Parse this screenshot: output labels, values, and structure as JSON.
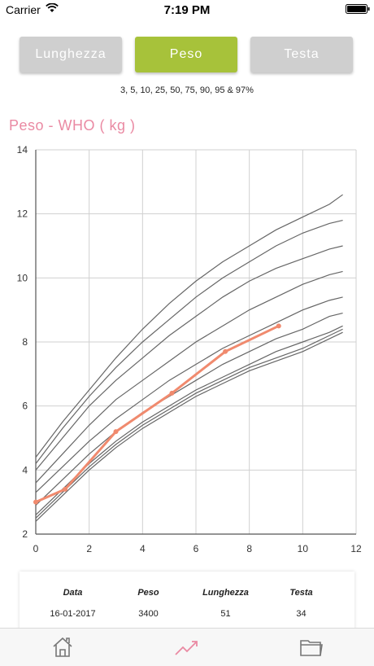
{
  "status_bar": {
    "carrier": "Carrier",
    "time": "7:19 PM"
  },
  "tabs": [
    {
      "label": "Lunghezza",
      "active": false
    },
    {
      "label": "Peso",
      "active": true
    },
    {
      "label": "Testa",
      "active": false
    }
  ],
  "percentiles_label": "3, 5, 10, 25, 50, 75, 90, 95 & 97%",
  "chart_title": "Peso - WHO ( kg )",
  "colors": {
    "active_tab": "#a7c23a",
    "inactive_tab": "#cfcfcf",
    "title": "#ea8aa3",
    "series": "#f08a6e",
    "percentile_lines": "#666666"
  },
  "chart_data": {
    "type": "line",
    "title": "Peso - WHO ( kg )",
    "xlim": [
      0,
      12
    ],
    "ylim": [
      2,
      14
    ],
    "x_ticks": [
      "0",
      "2",
      "4",
      "6",
      "8",
      "10",
      "12"
    ],
    "y_ticks": [
      "2",
      "4",
      "6",
      "8",
      "10",
      "12",
      "14"
    ],
    "grid": true,
    "x": [
      0,
      1,
      2,
      3,
      4,
      5,
      6,
      7,
      8,
      9,
      10,
      11,
      11.5
    ],
    "percentile_series": [
      {
        "values": [
          2.4,
          3.2,
          4.0,
          4.7,
          5.3,
          5.8,
          6.3,
          6.7,
          7.1,
          7.4,
          7.7,
          8.1,
          8.3
        ]
      },
      {
        "values": [
          2.5,
          3.3,
          4.1,
          4.8,
          5.4,
          5.9,
          6.4,
          6.8,
          7.2,
          7.5,
          7.8,
          8.2,
          8.4
        ]
      },
      {
        "values": [
          2.6,
          3.4,
          4.2,
          4.9,
          5.5,
          6.0,
          6.5,
          6.9,
          7.3,
          7.7,
          8.0,
          8.3,
          8.5
        ]
      },
      {
        "values": [
          2.9,
          3.7,
          4.5,
          5.2,
          5.8,
          6.3,
          6.8,
          7.3,
          7.7,
          8.1,
          8.4,
          8.8,
          8.9
        ]
      },
      {
        "values": [
          3.3,
          4.1,
          4.9,
          5.6,
          6.2,
          6.8,
          7.3,
          7.8,
          8.2,
          8.6,
          9.0,
          9.3,
          9.4
        ]
      },
      {
        "values": [
          3.6,
          4.5,
          5.4,
          6.2,
          6.8,
          7.4,
          8.0,
          8.5,
          9.0,
          9.4,
          9.8,
          10.1,
          10.2
        ]
      },
      {
        "values": [
          4.0,
          5.0,
          6.0,
          6.8,
          7.5,
          8.2,
          8.8,
          9.4,
          9.9,
          10.3,
          10.6,
          10.9,
          11.0
        ]
      },
      {
        "values": [
          4.2,
          5.3,
          6.3,
          7.2,
          8.0,
          8.7,
          9.4,
          10.0,
          10.5,
          11.0,
          11.4,
          11.7,
          11.8
        ]
      },
      {
        "values": [
          4.4,
          5.5,
          6.5,
          7.5,
          8.4,
          9.2,
          9.9,
          10.5,
          11.0,
          11.5,
          11.9,
          12.3,
          12.6
        ]
      }
    ],
    "child_series": {
      "x": [
        0,
        1.1,
        3.0,
        5.1,
        7.1,
        9.1
      ],
      "values": [
        3.0,
        3.4,
        5.2,
        6.4,
        7.7,
        8.5
      ]
    }
  },
  "table": {
    "headers": [
      "Data",
      "Peso",
      "Lunghezza",
      "Testa"
    ],
    "rows": [
      [
        "16-01-2017",
        "3400",
        "51",
        "34"
      ]
    ]
  },
  "tab_bar": {
    "icons": [
      "home-icon",
      "chart-icon",
      "folder-icon"
    ]
  }
}
